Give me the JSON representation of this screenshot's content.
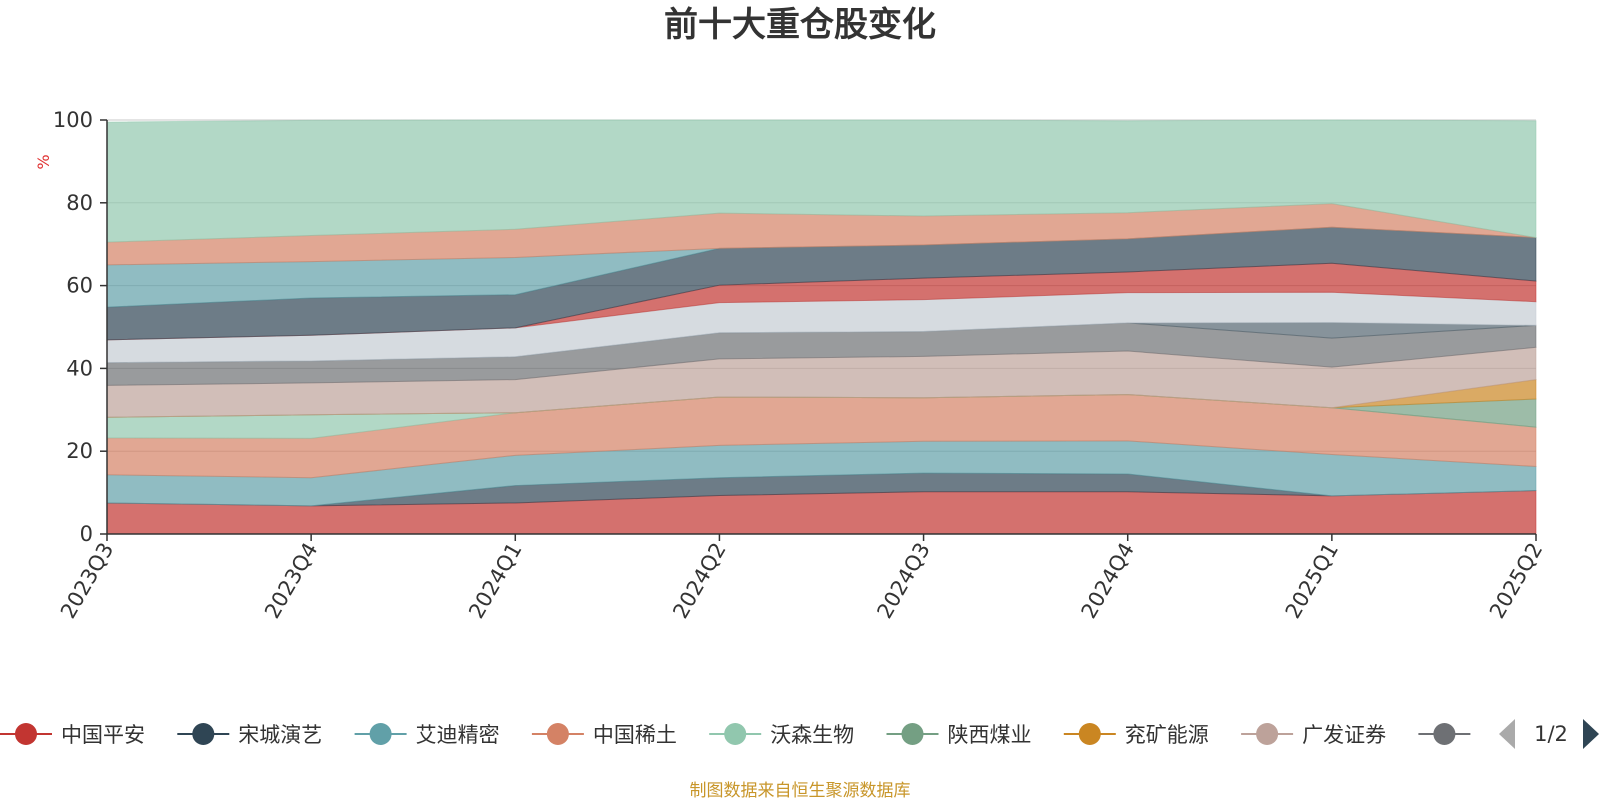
{
  "chart_data": {
    "type": "area",
    "title": "前十大重仓股变化",
    "ylabel": "%",
    "ylim": [
      0,
      100
    ],
    "yticks": [
      0,
      20,
      40,
      60,
      80,
      100
    ],
    "grid": true,
    "categories": [
      "2023Q3",
      "2023Q4",
      "2024Q1",
      "2024Q2",
      "2024Q3",
      "2024Q4",
      "2025Q1",
      "2025Q2"
    ],
    "series": [
      {
        "name": "中国平安",
        "color": "#c23531",
        "values": [
          7.5,
          6.8,
          7.5,
          9.3,
          10.2,
          10.2,
          9.2,
          10.5
        ]
      },
      {
        "name": "宋城演艺",
        "color": "#2f4554",
        "values": [
          0,
          0,
          4.2,
          4.3,
          4.5,
          4.3,
          0,
          0
        ]
      },
      {
        "name": "艾迪精密",
        "color": "#61a0a8",
        "values": [
          6.8,
          6.8,
          7.3,
          7.8,
          7.7,
          8.0,
          10.0,
          5.8
        ]
      },
      {
        "name": "中国稀土",
        "color": "#d48265",
        "values": [
          8.9,
          9.5,
          10.3,
          11.7,
          10.5,
          11.2,
          11.3,
          9.5
        ]
      },
      {
        "name": "沃森生物",
        "color": "#91c7ae",
        "values": [
          5.0,
          5.7,
          0,
          0,
          0,
          0,
          0,
          0
        ]
      },
      {
        "name": "陕西煤业",
        "color": "#749f83",
        "values": [
          0,
          0,
          0,
          0,
          0,
          0,
          0,
          6.8
        ]
      },
      {
        "name": "兖矿能源",
        "color": "#ca8622",
        "values": [
          0,
          0,
          0,
          0,
          0,
          0,
          0,
          4.7
        ]
      },
      {
        "name": "广发证券",
        "color": "#bda29a",
        "values": [
          7.7,
          7.7,
          8.0,
          9.2,
          10.0,
          10.5,
          9.8,
          7.8
        ]
      },
      {
        "name": "",
        "color": "#6e7074",
        "values": [
          5.5,
          5.3,
          5.5,
          6.3,
          6.0,
          6.8,
          7.0,
          5.3
        ]
      },
      {
        "name": "",
        "color": "#546570",
        "values": [
          0,
          0,
          0,
          0,
          0,
          0,
          3.8,
          0
        ]
      },
      {
        "name": "",
        "color": "#c4ccd3",
        "values": [
          5.5,
          6.2,
          7.0,
          7.3,
          7.7,
          7.3,
          7.3,
          5.7
        ]
      },
      {
        "name": "",
        "color": "#c23531",
        "values": [
          0,
          0,
          0,
          4.2,
          5.2,
          5.0,
          7.0,
          5.0
        ]
      },
      {
        "name": "",
        "color": "#2f4554",
        "values": [
          7.9,
          9.0,
          8.0,
          8.9,
          8.0,
          8.0,
          8.7,
          10.5
        ]
      },
      {
        "name": "",
        "color": "#61a0a8",
        "values": [
          10.2,
          8.8,
          9.0,
          0,
          0,
          0,
          0,
          0
        ]
      },
      {
        "name": "",
        "color": "#d48265",
        "values": [
          5.5,
          6.3,
          6.8,
          8.5,
          7.0,
          6.3,
          5.7,
          0
        ]
      },
      {
        "name": "",
        "color": "#91c7ae",
        "values": [
          29.0,
          27.8,
          26.4,
          22.5,
          23.2,
          22.2,
          20.2,
          28.2
        ]
      }
    ]
  },
  "legend": {
    "items": [
      {
        "name": "中国平安",
        "color": "#c23531"
      },
      {
        "name": "宋城演艺",
        "color": "#2f4554"
      },
      {
        "name": "艾迪精密",
        "color": "#61a0a8"
      },
      {
        "name": "中国稀土",
        "color": "#d48265"
      },
      {
        "name": "沃森生物",
        "color": "#91c7ae"
      },
      {
        "name": "陕西煤业",
        "color": "#749f83"
      },
      {
        "name": "兖矿能源",
        "color": "#ca8622"
      },
      {
        "name": "广发证券",
        "color": "#bda29a"
      },
      {
        "name": "",
        "color": "#6e7074"
      }
    ],
    "page_indicator": "1/2"
  },
  "footer": {
    "source_text": "制图数据来自恒生聚源数据库",
    "color": "#c8962a"
  },
  "colors": {
    "ylabel": "#e03030",
    "grid": "#c8c8c8",
    "axis": "#333333",
    "pager_active": "#2f4554",
    "pager_inactive": "#aaaaaa"
  }
}
